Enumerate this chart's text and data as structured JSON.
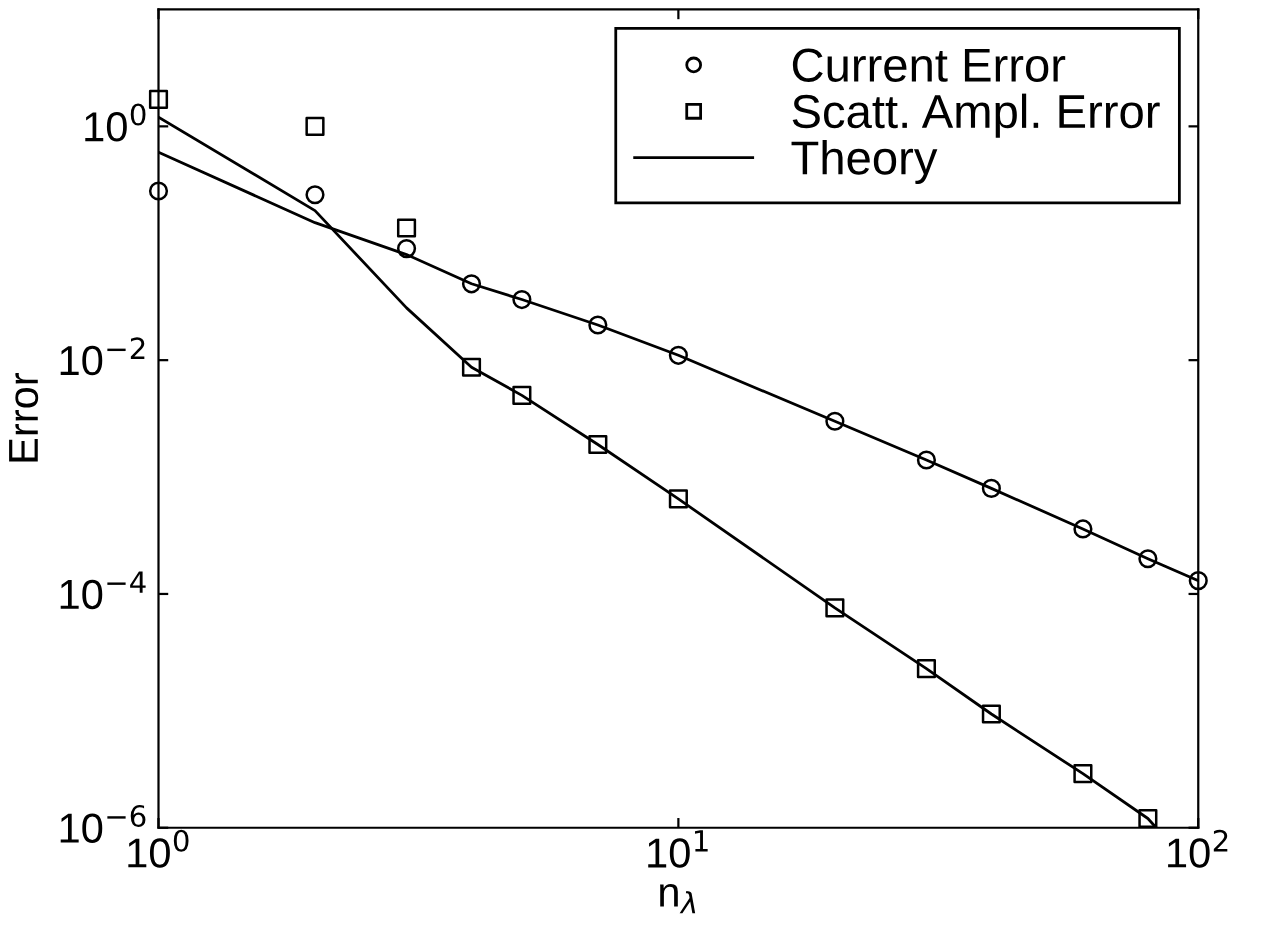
{
  "chart_data": {
    "type": "scatter",
    "xlabel": "n$_{λ}$",
    "ylabel": "Error",
    "log": "xy",
    "grid": false,
    "legend": "top right",
    "xlim": [
      1,
      100
    ],
    "ylim": [
      1e-06,
      10
    ],
    "xticks": [
      {
        "value": 1,
        "label": "10$^{0}$"
      },
      {
        "value": 10,
        "label": "10$^{1}$"
      },
      {
        "value": 100,
        "label": "10$^{2}$"
      }
    ],
    "yticks": [
      {
        "value": 1e-06,
        "label": "10$^{−6}$"
      },
      {
        "value": 0.0001,
        "label": "10$^{−4}$"
      },
      {
        "value": 0.01,
        "label": "10$^{−2}$"
      },
      {
        "value": 1,
        "label": "10$^{0}$"
      }
    ],
    "series": [
      {
        "name": "Current Error",
        "marker": "circle",
        "color": "#000000",
        "x": [
          1,
          2,
          3,
          4,
          5,
          7,
          10,
          20,
          30,
          40,
          60,
          80,
          100
        ],
        "values": [
          0.28,
          0.26,
          0.09,
          0.045,
          0.033,
          0.02,
          0.011,
          0.003,
          0.0014,
          0.0008,
          0.00036,
          0.0002,
          0.00013
        ]
      },
      {
        "name": "Scatt. Ampl. Error",
        "marker": "square",
        "color": "#000000",
        "x": [
          1,
          2,
          3,
          4,
          5,
          7,
          10,
          20,
          30,
          40,
          60,
          80
        ],
        "values": [
          1.7,
          1.0,
          0.135,
          0.0087,
          0.005,
          0.0019,
          0.00065,
          7.6e-05,
          2.3e-05,
          9.4e-06,
          2.9e-06,
          1.2e-06
        ]
      },
      {
        "name": "Theory",
        "type": "line",
        "marker": "none",
        "line_style": "solid",
        "color": "#000000",
        "x": [
          1,
          2,
          3,
          4,
          5,
          7,
          10,
          20,
          30,
          40,
          60,
          80,
          100
        ],
        "values": [
          0.6,
          0.15,
          0.08,
          0.045,
          0.033,
          0.02,
          0.011,
          0.003,
          0.0014,
          0.0008,
          0.00036,
          0.0002,
          0.00013
        ]
      },
      {
        "type": "line",
        "marker": "none",
        "line_style": "solid",
        "color": "#000000",
        "x": [
          1,
          2,
          3,
          4,
          5,
          7,
          10,
          20,
          30,
          40,
          60,
          80,
          83
        ],
        "values": [
          1.2,
          0.19,
          0.028,
          0.0087,
          0.005,
          0.0019,
          0.00065,
          7.6e-05,
          2.3e-05,
          9.4e-06,
          2.9e-06,
          1.2e-06,
          1e-06
        ]
      }
    ]
  }
}
